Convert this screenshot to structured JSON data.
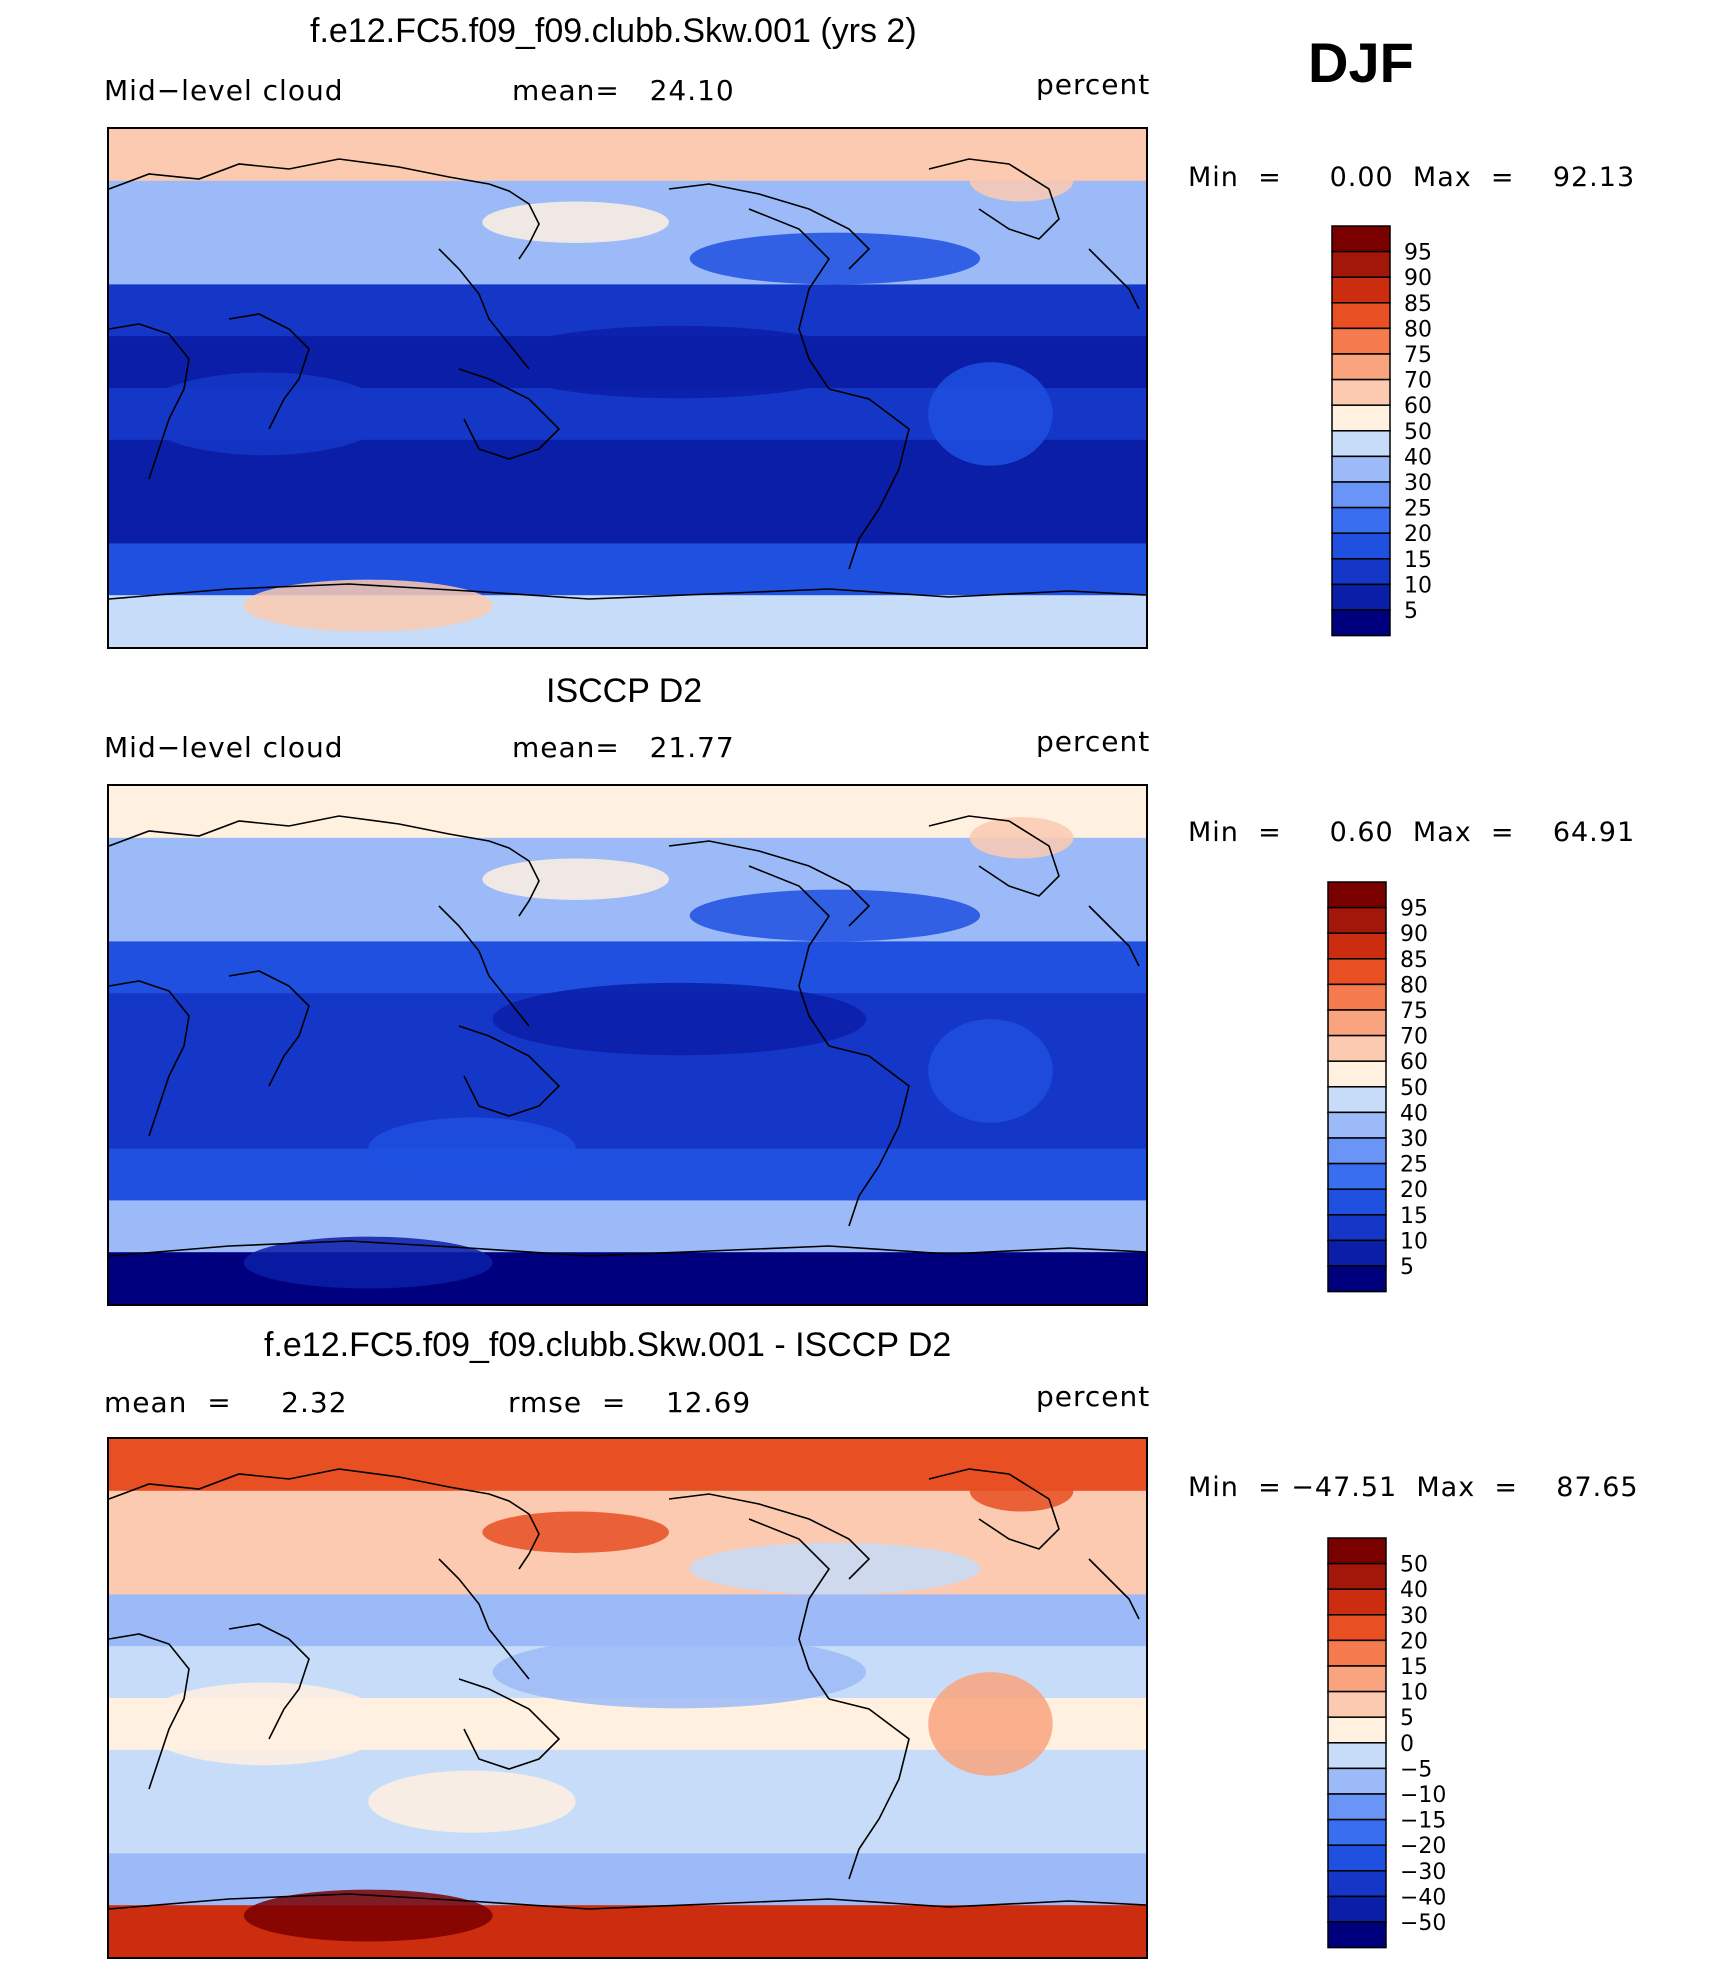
{
  "season": "DJF",
  "colors": {
    "seq": [
      "#00007f",
      "#0a1ea8",
      "#1537c8",
      "#1f50e0",
      "#3a6ef0",
      "#6a94f5",
      "#9bbaf7",
      "#c7dcf8",
      "#fff0e0",
      "#fccab0",
      "#f9a47e",
      "#f57a4e",
      "#e84f22",
      "#cc2d0e",
      "#a3160a",
      "#7a0000"
    ],
    "diff": [
      "#00007f",
      "#0a1ea8",
      "#1537c8",
      "#1f50e0",
      "#3a6ef0",
      "#6a94f5",
      "#9bbaf7",
      "#c7dcf8",
      "#fff0e0",
      "#fccab0",
      "#f9a47e",
      "#f57a4e",
      "#e84f22",
      "#cc2d0e",
      "#a3160a",
      "#7a0000"
    ]
  },
  "panels": [
    {
      "title": "f.e12.FC5.f09_f09.clubb.Skw.001 (yrs 2)",
      "left_label": "Mid−level cloud",
      "mid_label": "mean=   24.10",
      "right_label": "percent",
      "minmax": "Min  =     0.00  Max  =    92.13",
      "colorbar_labels": [
        "95",
        "90",
        "85",
        "80",
        "75",
        "70",
        "60",
        "50",
        "40",
        "30",
        "25",
        "20",
        "15",
        "10",
        "5"
      ]
    },
    {
      "title": "ISCCP D2",
      "left_label": "Mid−level cloud",
      "mid_label": "mean=   21.77",
      "right_label": "percent",
      "minmax": "Min  =     0.60  Max  =    64.91",
      "colorbar_labels": [
        "95",
        "90",
        "85",
        "80",
        "75",
        "70",
        "60",
        "50",
        "40",
        "30",
        "25",
        "20",
        "15",
        "10",
        "5"
      ]
    },
    {
      "title": "f.e12.FC5.f09_f09.clubb.Skw.001 - ISCCP D2",
      "left_label": "mean  =     2.32",
      "mid_label": "rmse  =    12.69",
      "right_label": "percent",
      "minmax": "Min  = −47.51  Max  =    87.65",
      "colorbar_labels": [
        "50",
        "40",
        "30",
        "20",
        "15",
        "10",
        "5",
        "0",
        "−5",
        "−10",
        "−15",
        "−20",
        "−30",
        "−40",
        "−50"
      ]
    }
  ],
  "chart_data": [
    {
      "type": "heatmap",
      "title": "f.e12.FC5.f09_f09.clubb.Skw.001 (yrs 2)",
      "variable": "Mid-level cloud",
      "units": "percent",
      "mean": 24.1,
      "min": 0.0,
      "max": 92.13,
      "contour_levels": [
        5,
        10,
        15,
        20,
        25,
        30,
        40,
        50,
        60,
        70,
        75,
        80,
        85,
        90,
        95
      ],
      "zonal_band_values": [
        62,
        35,
        30,
        14,
        8,
        12,
        9,
        8,
        18,
        40
      ]
    },
    {
      "type": "heatmap",
      "title": "ISCCP D2",
      "variable": "Mid-level cloud",
      "units": "percent",
      "mean": 21.77,
      "min": 0.6,
      "max": 64.91,
      "contour_levels": [
        5,
        10,
        15,
        20,
        25,
        30,
        40,
        50,
        60,
        70,
        75,
        80,
        85,
        90,
        95
      ],
      "zonal_band_values": [
        52,
        36,
        30,
        16,
        12,
        14,
        12,
        15,
        32,
        4
      ]
    },
    {
      "type": "heatmap",
      "title": "f.e12.FC5.f09_f09.clubb.Skw.001 - ISCCP D2",
      "variable": "Mid-level cloud difference",
      "units": "percent",
      "mean": 2.32,
      "rmse": 12.69,
      "min": -47.51,
      "max": 87.65,
      "contour_levels": [
        -50,
        -40,
        -30,
        -20,
        -15,
        -10,
        -5,
        0,
        5,
        10,
        15,
        20,
        30,
        40,
        50
      ],
      "zonal_band_values": [
        22,
        8,
        6,
        -6,
        -2,
        4,
        -3,
        -4,
        -8,
        38
      ]
    }
  ]
}
